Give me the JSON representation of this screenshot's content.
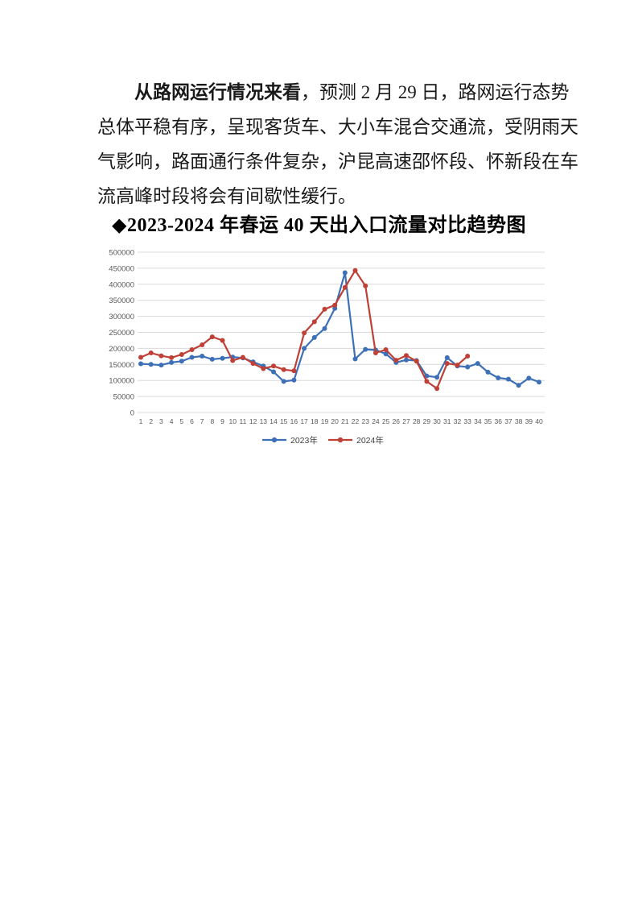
{
  "paragraph": {
    "lead_bold": "从路网运行情况来看",
    "line1_rest": "，预测 2 月 29 日，路网运行态势",
    "line2": "总体平稳有序，呈现客货车、大小车混合交通流，受阴雨天",
    "line3": "气影响，路面通行条件复杂，沪昆高速邵怀段、怀新段在车",
    "line4": "流高峰时段将会有间歇性缓行。"
  },
  "chart_title": "◆2023-2024 年春运 40 天出入口流量对比趋势图",
  "chart_data": {
    "type": "line",
    "title": "2023-2024年春运40天出入口流量对比趋势图",
    "x": [
      1,
      2,
      3,
      4,
      5,
      6,
      7,
      8,
      9,
      10,
      11,
      12,
      13,
      14,
      15,
      16,
      17,
      18,
      19,
      20,
      21,
      22,
      23,
      24,
      25,
      26,
      27,
      28,
      29,
      30,
      31,
      32,
      33,
      34,
      35,
      36,
      37,
      38,
      39,
      40
    ],
    "xlabel": "",
    "ylabel": "",
    "ylim": [
      0,
      500000
    ],
    "ytick_interval": 50000,
    "yticks": [
      "0",
      "50000",
      "100000",
      "150000",
      "200000",
      "250000",
      "300000",
      "350000",
      "400000",
      "450000",
      "500000"
    ],
    "grid": true,
    "legend_position": "bottom",
    "grid_color": "#d9d9d9",
    "tick_color": "#595959",
    "series": [
      {
        "name": "2023年",
        "color": "#3d70b6",
        "marker": "circle",
        "values": [
          152000,
          150000,
          148000,
          156000,
          160000,
          172000,
          176000,
          166000,
          169000,
          173000,
          170000,
          158000,
          145000,
          127000,
          97000,
          101000,
          200000,
          234000,
          262000,
          325000,
          436000,
          167000,
          197000,
          195000,
          183000,
          156000,
          164000,
          162000,
          114000,
          110000,
          171000,
          145000,
          142000,
          153000,
          126000,
          108000,
          104000,
          85000,
          107000,
          95000
        ]
      },
      {
        "name": "2024年",
        "color": "#be4036",
        "marker": "circle",
        "values": [
          172000,
          186000,
          177000,
          171000,
          181000,
          196000,
          211000,
          236000,
          225000,
          162000,
          172000,
          153000,
          137000,
          145000,
          134000,
          130000,
          248000,
          283000,
          322000,
          335000,
          390000,
          443000,
          395000,
          186000,
          196000,
          163000,
          178000,
          160000,
          97000,
          75000,
          153000,
          148000,
          176000
        ]
      }
    ]
  }
}
